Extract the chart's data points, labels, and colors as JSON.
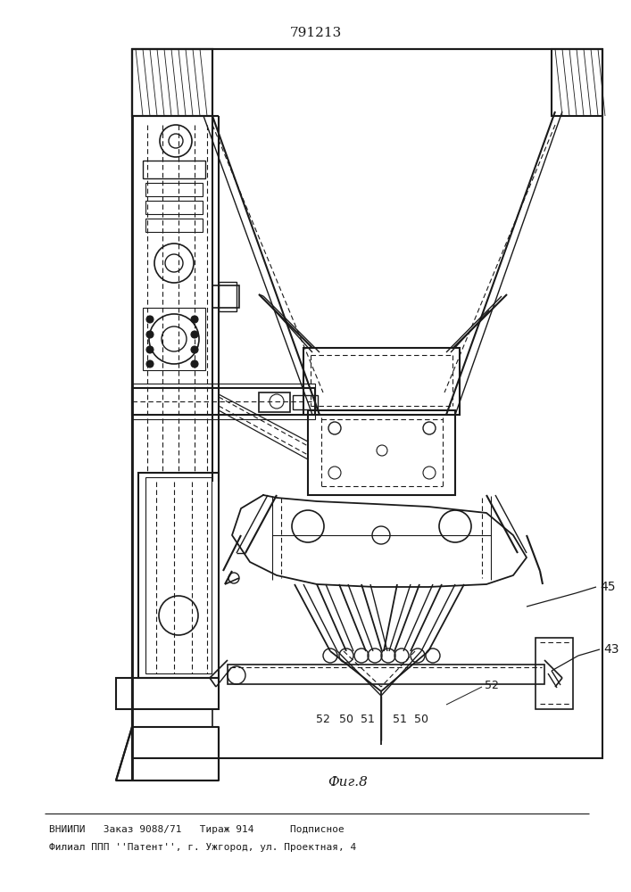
{
  "patent_number": "791213",
  "figure_label": "Фиг.8",
  "footer_line1": "ВНИИПИ   Заказ 9088/71   Тираж 914      Подписное",
  "footer_line2": "Филиал ППП ''Патент'', г. Ужгород, ул. Проектная, 4",
  "bg_color": "#ffffff",
  "line_color": "#1a1a1a"
}
